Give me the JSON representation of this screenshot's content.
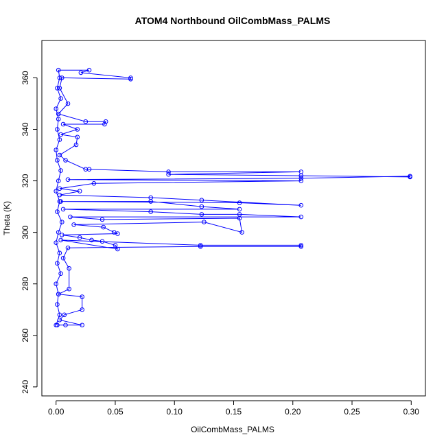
{
  "chart_data": {
    "type": "scatter",
    "title": "ATOM4 Northbound OilCombMass_PALMS",
    "xlabel": "OilCombMass_PALMS",
    "ylabel": "Theta (K)",
    "xlim": [
      -0.012,
      0.312
    ],
    "ylim": [
      236.5,
      374.5
    ],
    "x_ticks": [
      0.0,
      0.05,
      0.1,
      0.15,
      0.2,
      0.25,
      0.3
    ],
    "x_tick_labels": [
      "0.00",
      "0.05",
      "0.10",
      "0.15",
      "0.20",
      "0.25",
      "0.30"
    ],
    "y_ticks": [
      240,
      260,
      280,
      300,
      320,
      340,
      360
    ],
    "y_tick_labels": [
      "240",
      "260",
      "280",
      "300",
      "320",
      "340",
      "360"
    ],
    "grid": false,
    "series": [
      {
        "color": "#0000ff",
        "marker": "open-circle",
        "connected": true,
        "approximate": true,
        "points": [
          [
            0.0,
            264
          ],
          [
            0.003,
            268
          ],
          [
            0.001,
            272
          ],
          [
            0.002,
            276
          ],
          [
            0.0,
            280
          ],
          [
            0.004,
            284
          ],
          [
            0.001,
            288
          ],
          [
            0.003,
            292
          ],
          [
            0.0,
            296
          ],
          [
            0.002,
            300
          ],
          [
            0.005,
            304
          ],
          [
            0.001,
            308
          ],
          [
            0.003,
            312
          ],
          [
            0.0,
            316
          ],
          [
            0.002,
            320
          ],
          [
            0.004,
            324
          ],
          [
            0.001,
            328
          ],
          [
            0.0,
            332
          ],
          [
            0.003,
            336
          ],
          [
            0.001,
            340
          ],
          [
            0.002,
            344
          ],
          [
            0.0,
            348
          ],
          [
            0.004,
            352
          ],
          [
            0.001,
            356
          ],
          [
            0.003,
            360
          ],
          [
            0.002,
            363
          ],
          [
            0.028,
            363
          ],
          [
            0.021,
            362
          ],
          [
            0.063,
            360
          ],
          [
            0.063,
            359.5
          ],
          [
            0.005,
            360
          ],
          [
            0.003,
            356
          ],
          [
            0.01,
            350
          ],
          [
            0.002,
            346
          ],
          [
            0.025,
            343
          ],
          [
            0.042,
            343
          ],
          [
            0.041,
            342
          ],
          [
            0.006,
            342
          ],
          [
            0.018,
            340
          ],
          [
            0.004,
            338
          ],
          [
            0.018,
            337
          ],
          [
            0.017,
            334
          ],
          [
            0.003,
            330
          ],
          [
            0.008,
            328
          ],
          [
            0.025,
            324.5
          ],
          [
            0.028,
            324.5
          ],
          [
            0.095,
            323.5
          ],
          [
            0.207,
            323.5
          ],
          [
            0.095,
            322.5
          ],
          [
            0.207,
            322
          ],
          [
            0.299,
            321.5
          ],
          [
            0.299,
            321.8
          ],
          [
            0.207,
            321
          ],
          [
            0.01,
            320.5
          ],
          [
            0.207,
            320
          ],
          [
            0.032,
            319
          ],
          [
            0.003,
            317
          ],
          [
            0.02,
            316
          ],
          [
            0.003,
            314.5
          ],
          [
            0.08,
            313.5
          ],
          [
            0.123,
            312.5
          ],
          [
            0.207,
            310.5
          ],
          [
            0.155,
            311.5
          ],
          [
            0.004,
            312
          ],
          [
            0.08,
            312
          ],
          [
            0.123,
            310
          ],
          [
            0.155,
            309
          ],
          [
            0.006,
            309
          ],
          [
            0.08,
            308
          ],
          [
            0.123,
            307
          ],
          [
            0.155,
            307
          ],
          [
            0.207,
            306
          ],
          [
            0.012,
            306
          ],
          [
            0.039,
            305
          ],
          [
            0.155,
            305.5
          ],
          [
            0.157,
            300
          ],
          [
            0.125,
            304
          ],
          [
            0.015,
            303
          ],
          [
            0.04,
            302
          ],
          [
            0.049,
            300
          ],
          [
            0.052,
            299.5
          ],
          [
            0.005,
            299
          ],
          [
            0.02,
            298
          ],
          [
            0.03,
            297
          ],
          [
            0.039,
            296.5
          ],
          [
            0.05,
            295
          ],
          [
            0.052,
            293.5
          ],
          [
            0.004,
            297
          ],
          [
            0.122,
            295
          ],
          [
            0.207,
            295
          ],
          [
            0.207,
            294.5
          ],
          [
            0.122,
            294.5
          ],
          [
            0.01,
            294
          ],
          [
            0.006,
            290
          ],
          [
            0.011,
            286
          ],
          [
            0.011,
            278
          ],
          [
            0.002,
            276
          ],
          [
            0.022,
            275
          ],
          [
            0.022,
            270
          ],
          [
            0.007,
            268
          ],
          [
            0.003,
            266
          ],
          [
            0.022,
            264
          ],
          [
            0.008,
            264
          ],
          [
            0.001,
            264
          ]
        ]
      }
    ]
  }
}
